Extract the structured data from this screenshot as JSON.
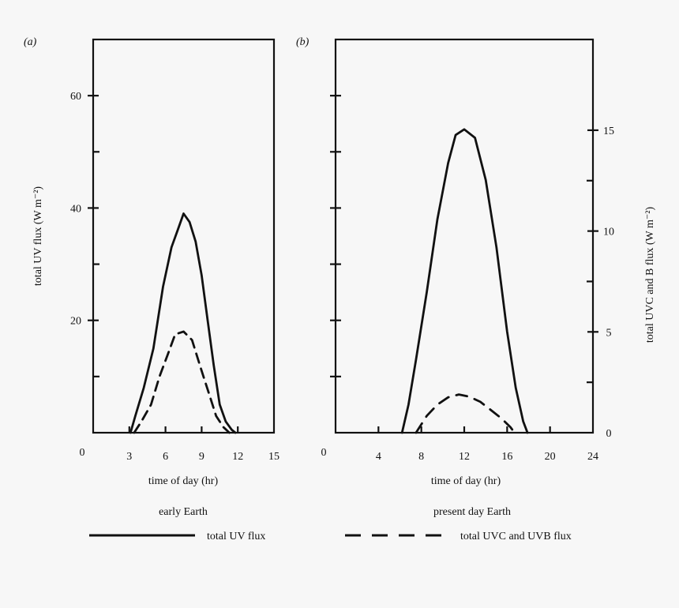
{
  "panels": [
    {
      "label": "(a)",
      "caption": "early Earth",
      "xlabel": "time of day (hr)",
      "x_ticks": [
        0,
        3,
        6,
        9,
        12,
        15
      ],
      "xlim": [
        0,
        15
      ],
      "ylabel_left": "total UV flux (W m⁻²)",
      "ylim_left": [
        0,
        70
      ],
      "y_ticks_left": [
        20,
        40,
        60
      ],
      "y_ticks_left_minor": [
        10,
        30,
        50
      ],
      "series": [
        {
          "name": "total UV flux",
          "style": "solid",
          "axis": "left",
          "points": [
            [
              3.1,
              0
            ],
            [
              3.5,
              3
            ],
            [
              4.2,
              8
            ],
            [
              5,
              15
            ],
            [
              5.8,
              26
            ],
            [
              6.5,
              33
            ],
            [
              7,
              36
            ],
            [
              7.5,
              39
            ],
            [
              8,
              37.5
            ],
            [
              8.5,
              34
            ],
            [
              9,
              28
            ],
            [
              9.5,
              20
            ],
            [
              10,
              12
            ],
            [
              10.5,
              5
            ],
            [
              11,
              2
            ],
            [
              11.5,
              0.5
            ],
            [
              11.8,
              0
            ]
          ]
        },
        {
          "name": "total UVC and UVB flux",
          "style": "dashed",
          "axis": "left",
          "points": [
            [
              3.4,
              0
            ],
            [
              4,
              2
            ],
            [
              4.8,
              5
            ],
            [
              5.5,
              10
            ],
            [
              6.2,
              14
            ],
            [
              6.8,
              17.5
            ],
            [
              7.5,
              18
            ],
            [
              8.2,
              16.5
            ],
            [
              9,
              11
            ],
            [
              9.6,
              7
            ],
            [
              10.2,
              3
            ],
            [
              10.8,
              1
            ],
            [
              11.3,
              0
            ]
          ]
        }
      ]
    },
    {
      "label": "(b)",
      "caption": "present day Earth",
      "xlabel": "time of day (hr)",
      "x_ticks": [
        0,
        4,
        8,
        12,
        16,
        20,
        24
      ],
      "xlim": [
        0,
        24
      ],
      "ylabel_right": "total UVC and B flux (W m⁻²)",
      "ylim_right": [
        0,
        19.5
      ],
      "y_ticks_right": [
        0,
        5,
        10,
        15
      ],
      "y_ticks_right_minor": [
        2.5,
        7.5,
        12.5
      ],
      "ylim_left": [
        0,
        70
      ],
      "y_ticks_left_unlabeled": [
        10,
        20,
        30,
        40,
        50,
        60
      ],
      "series": [
        {
          "name": "total UV flux",
          "style": "solid",
          "axis": "left",
          "points": [
            [
              6.2,
              0
            ],
            [
              6.8,
              5
            ],
            [
              7.5,
              13
            ],
            [
              8.5,
              25
            ],
            [
              9.5,
              38
            ],
            [
              10.5,
              48
            ],
            [
              11.2,
              53
            ],
            [
              12,
              54
            ],
            [
              13,
              52.5
            ],
            [
              14,
              45
            ],
            [
              15,
              33
            ],
            [
              16,
              18
            ],
            [
              16.8,
              8
            ],
            [
              17.5,
              2
            ],
            [
              17.9,
              0
            ]
          ]
        },
        {
          "name": "total UVC and UVB flux",
          "style": "dashed",
          "axis": "left",
          "points": [
            [
              7.5,
              0
            ],
            [
              8.5,
              3
            ],
            [
              9.5,
              5
            ],
            [
              10.5,
              6.3
            ],
            [
              11.5,
              6.8
            ],
            [
              12.5,
              6.4
            ],
            [
              13.5,
              5.5
            ],
            [
              14.5,
              4
            ],
            [
              15.5,
              2.5
            ],
            [
              16.3,
              1
            ],
            [
              16.7,
              0
            ]
          ]
        }
      ]
    }
  ],
  "legend": [
    {
      "label": "total UV flux",
      "style": "solid"
    },
    {
      "label": "total UVC and UVB flux",
      "style": "dashed"
    }
  ]
}
